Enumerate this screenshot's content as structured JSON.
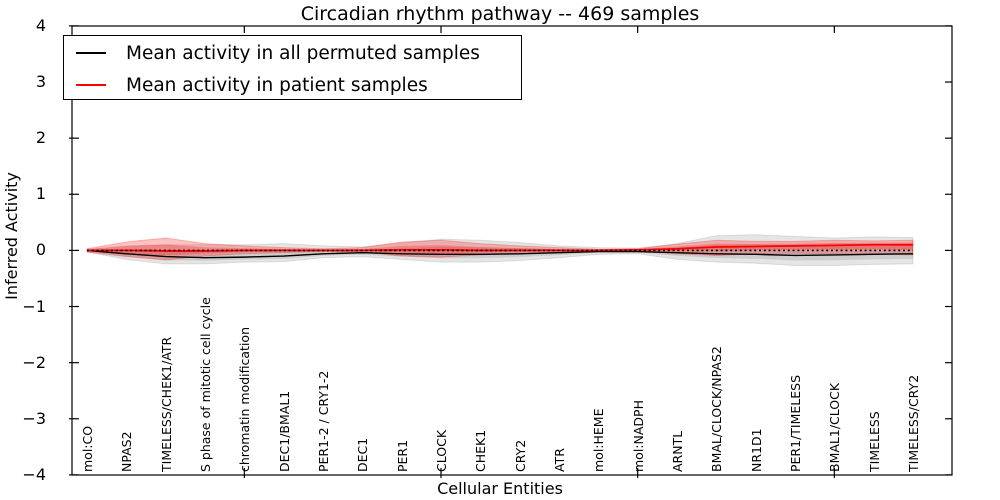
{
  "title": "Circadian rhythm pathway -- 469 samples",
  "axes": {
    "xlabel": "Cellular Entities",
    "ylabel": "Inferred Activity"
  },
  "legend": {
    "position": "upper left"
  },
  "colors": {
    "permuted": "#000000",
    "patient": "#ff0000",
    "frame": "#000000"
  },
  "chart_data": {
    "type": "line",
    "title": "Circadian rhythm pathway -- 469 samples",
    "xlabel": "Cellular Entities",
    "ylabel": "Inferred Activity",
    "ylim": [
      -4,
      4
    ],
    "ytick_values": [
      4,
      3,
      2,
      1,
      0,
      -1,
      -2,
      -3,
      -4
    ],
    "ytick_labels": [
      "4",
      "3",
      "2",
      "1",
      "0",
      "−1",
      "−2",
      "−3",
      "−4"
    ],
    "xtick_indices": [
      4,
      9,
      14,
      19
    ],
    "grid": false,
    "legend_position": "upper left",
    "zero_reference_line": 0,
    "categories": [
      "mol:CO",
      "NPAS2",
      "TIMELESS/CHEK1/ATR",
      "S phase of mitotic cell cycle",
      "chromatin modification",
      "DEC1/BMAL1",
      "PER1-2 / CRY1-2",
      "DEC1",
      "PER1",
      "CLOCK",
      "CHEK1",
      "CRY2",
      "ATR",
      "mol:HEME",
      "mol:NADPH",
      "ARNTL",
      "BMAL/CLOCK/NPAS2",
      "NR1D1",
      "PER1/TIMELESS",
      "BMAL1/CLOCK",
      "TIMELESS",
      "TIMELESS/CRY2"
    ],
    "series": [
      {
        "name": "Mean activity in all permuted samples",
        "color": "#000000",
        "line_style": "solid",
        "mean": [
          0.0,
          -0.06,
          -0.11,
          -0.13,
          -0.12,
          -0.1,
          -0.06,
          -0.04,
          -0.06,
          -0.07,
          -0.07,
          -0.06,
          -0.04,
          -0.02,
          -0.02,
          -0.04,
          -0.06,
          -0.07,
          -0.09,
          -0.08,
          -0.07,
          -0.06
        ],
        "band_upper": [
          0.02,
          0.08,
          0.1,
          0.1,
          0.1,
          0.12,
          0.08,
          0.06,
          0.13,
          0.2,
          0.18,
          0.14,
          0.08,
          0.05,
          0.04,
          0.12,
          0.26,
          0.28,
          0.25,
          0.22,
          0.24,
          0.23
        ],
        "band_lower": [
          -0.03,
          -0.16,
          -0.24,
          -0.24,
          -0.21,
          -0.2,
          -0.13,
          -0.11,
          -0.16,
          -0.21,
          -0.21,
          -0.18,
          -0.13,
          -0.07,
          -0.06,
          -0.16,
          -0.21,
          -0.23,
          -0.27,
          -0.27,
          -0.25,
          -0.24
        ]
      },
      {
        "name": "Mean activity in patient samples",
        "color": "#ff0000",
        "line_style": "solid",
        "mean": [
          0.0,
          0.0,
          -0.01,
          -0.01,
          0.0,
          0.0,
          0.0,
          0.0,
          0.01,
          0.01,
          0.0,
          0.0,
          0.0,
          0.0,
          0.01,
          0.03,
          0.06,
          0.07,
          0.08,
          0.09,
          0.1,
          0.1
        ],
        "band_upper": [
          0.03,
          0.15,
          0.22,
          0.12,
          0.08,
          0.05,
          0.03,
          0.05,
          0.15,
          0.18,
          0.12,
          0.08,
          0.05,
          0.02,
          0.03,
          0.11,
          0.18,
          0.16,
          0.16,
          0.18,
          0.17,
          0.18
        ],
        "band_lower": [
          -0.03,
          -0.11,
          -0.17,
          -0.1,
          -0.06,
          -0.04,
          -0.02,
          -0.03,
          -0.1,
          -0.12,
          -0.08,
          -0.05,
          -0.03,
          -0.02,
          -0.02,
          -0.06,
          -0.09,
          -0.06,
          -0.05,
          -0.06,
          -0.06,
          -0.08
        ]
      }
    ]
  }
}
